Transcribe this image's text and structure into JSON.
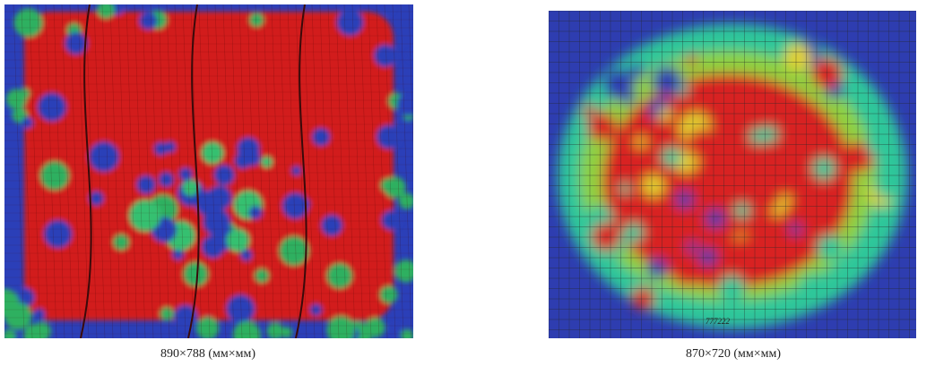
{
  "figure": {
    "panels": [
      {
        "caption": "890×788 (мм×мм)"
      },
      {
        "caption": "870×720 (мм×мм)",
        "labels": [
          "777222"
        ]
      }
    ]
  }
}
